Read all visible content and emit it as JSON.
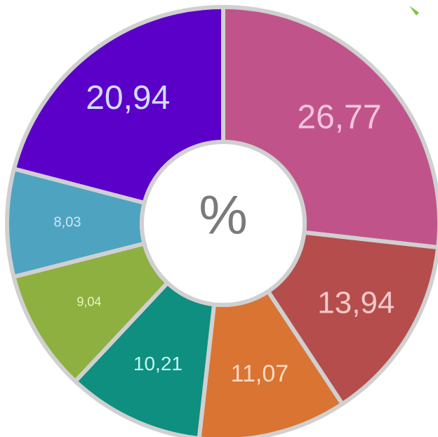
{
  "chart_data": {
    "type": "donut",
    "center_label": "%",
    "categories": [
      null,
      null,
      null,
      null,
      null,
      null,
      null
    ],
    "values": [
      26.77,
      13.94,
      11.07,
      10.21,
      9.04,
      8.03,
      20.94
    ],
    "value_labels": [
      "26,77",
      "13,94",
      "11,07",
      "10,21",
      "9,04",
      "8,03",
      "20,94"
    ],
    "colors": [
      "#c0548a",
      "#b54d4d",
      "#d97433",
      "#0e8f80",
      "#8db040",
      "#4ea3c0",
      "#5b00c8"
    ],
    "label_colors": [
      "#f2c4dc",
      "#f5c8c8",
      "#fbd9c2",
      "#c4f7ef",
      "#eaf4c2",
      "#cbe9f5",
      "#d2dcff"
    ]
  }
}
